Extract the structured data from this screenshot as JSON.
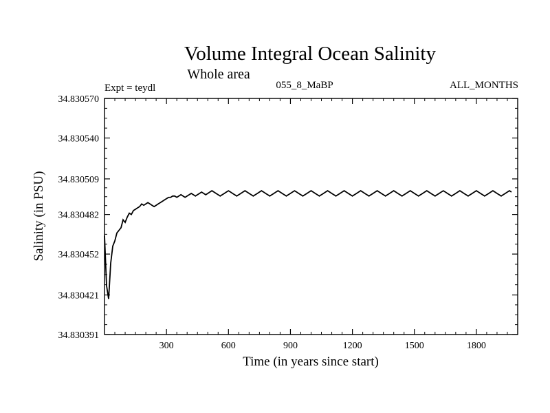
{
  "chart_data": {
    "type": "line",
    "title": "Volume Integral Ocean Salinity",
    "subtitle": "Whole area",
    "annotations": {
      "left": "Expt = teydl",
      "center": "055_8_MaBP",
      "right": "ALL_MONTHS"
    },
    "xlabel": "Time (in years since start)",
    "ylabel": "Salinity (in PSU)",
    "xlim": [
      0,
      2000
    ],
    "ylim": [
      34.830391,
      34.83057
    ],
    "x_ticks": [
      300,
      600,
      900,
      1200,
      1500,
      1800
    ],
    "x_tick_labels": [
      "300",
      "600",
      "900",
      "1200",
      "1500",
      "1800"
    ],
    "y_ticks": [
      34.830391,
      34.830421,
      34.830452,
      34.830482,
      34.830509,
      34.83054,
      34.83057
    ],
    "y_tick_labels": [
      "34.830391",
      "34.830421",
      "34.830452",
      "34.830482",
      "34.830509",
      "34.830540",
      "34.830570"
    ],
    "grid": false,
    "series": [
      {
        "name": "salinity",
        "color": "#000000",
        "sampling_interval_years": 10,
        "x_start": 0,
        "values": [
          34.830466,
          34.830428,
          34.830418,
          34.830445,
          34.830458,
          34.830462,
          34.830468,
          34.83047,
          34.830472,
          34.830478,
          34.830476,
          34.83048,
          34.830483,
          34.830482,
          34.830485,
          34.830486,
          34.830487,
          34.830488,
          34.83049,
          34.830489,
          34.83049,
          34.830491,
          34.83049,
          34.830489,
          34.830488,
          34.830489,
          34.83049,
          34.830491,
          34.830492,
          34.830493,
          34.830494,
          34.830495,
          34.830495,
          34.830496,
          34.830496,
          34.830495,
          34.830496,
          34.830497,
          34.830496,
          34.830495,
          34.830496,
          34.830497,
          34.830498,
          34.830497,
          34.830496,
          34.830497,
          34.830498,
          34.830499,
          34.830498,
          34.830497,
          34.830498,
          34.830499,
          34.8305,
          34.830499,
          34.830498,
          34.830497,
          34.830496,
          34.830497,
          34.830498,
          34.830499,
          34.8305,
          34.830499,
          34.830498,
          34.830497,
          34.830496,
          34.830497,
          34.830498,
          34.830499,
          34.8305,
          34.830499,
          34.830498,
          34.830497,
          34.830496,
          34.830497,
          34.830498,
          34.830499,
          34.8305,
          34.830499,
          34.830498,
          34.830497,
          34.830496,
          34.830497,
          34.830498,
          34.830499,
          34.8305,
          34.830499,
          34.830498,
          34.830497,
          34.830496,
          34.830497,
          34.830498,
          34.830499,
          34.8305,
          34.830499,
          34.830498,
          34.830497,
          34.830496,
          34.830497,
          34.830498,
          34.830499,
          34.8305,
          34.830499,
          34.830498,
          34.830497,
          34.830496,
          34.830497,
          34.830498,
          34.830499,
          34.8305,
          34.830499,
          34.830498,
          34.830497,
          34.830496,
          34.830497,
          34.830498,
          34.830499,
          34.8305,
          34.830499,
          34.830498,
          34.830497,
          34.830496,
          34.830497,
          34.830498,
          34.830499,
          34.8305,
          34.830499,
          34.830498,
          34.830497,
          34.830496,
          34.830497,
          34.830498,
          34.830499,
          34.8305,
          34.830499,
          34.830498,
          34.830497,
          34.830496,
          34.830497,
          34.830498,
          34.830499,
          34.8305,
          34.830499,
          34.830498,
          34.830497,
          34.830496,
          34.830497,
          34.830498,
          34.830499,
          34.8305,
          34.830499,
          34.830498,
          34.830497,
          34.830496,
          34.830497,
          34.830498,
          34.830499,
          34.8305,
          34.830499,
          34.830498,
          34.830497,
          34.830496,
          34.830497,
          34.830498,
          34.830499,
          34.8305,
          34.830499,
          34.830498,
          34.830497,
          34.830496,
          34.830497,
          34.830498,
          34.830499,
          34.8305,
          34.830499,
          34.830498,
          34.830497,
          34.830496,
          34.830497,
          34.830498,
          34.830499,
          34.8305,
          34.830499,
          34.830498,
          34.830497,
          34.830496,
          34.830497,
          34.830498,
          34.830499,
          34.8305,
          34.830499,
          34.830498,
          34.830497,
          34.830496,
          34.830497,
          34.830498,
          34.830499,
          34.8305,
          34.830499
        ]
      }
    ]
  }
}
